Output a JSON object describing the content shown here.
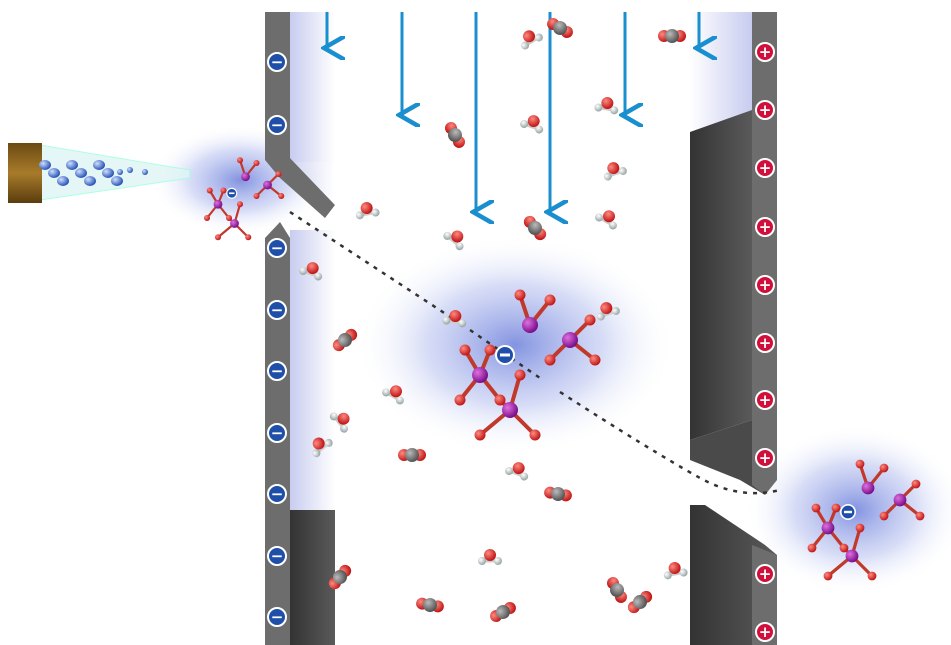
{
  "electrodes": {
    "left_sign": "−",
    "right_sign": "+"
  }
}
